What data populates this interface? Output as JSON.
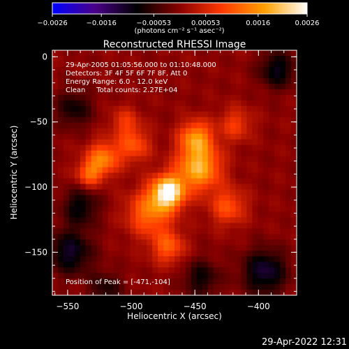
{
  "chart_data": {
    "type": "heatmap",
    "title": "Reconstructed RHESSI Image",
    "xlabel": "Heliocentric X (arcsec)",
    "ylabel": "Heliocentric Y (arcsec)",
    "xlim": [
      -562,
      -370
    ],
    "ylim": [
      -183,
      5
    ],
    "x_ticks": [
      -550,
      -500,
      -450,
      -400
    ],
    "x_tick_labels": [
      "−550",
      "−500",
      "−450",
      "−400"
    ],
    "y_ticks": [
      0,
      -50,
      -100,
      -150
    ],
    "y_tick_labels": [
      "0",
      "−50",
      "−100",
      "−150"
    ],
    "grid": false,
    "colorbar": {
      "range": [
        -0.0026,
        0.0026
      ],
      "ticks": [
        -0.0026,
        -0.0016,
        -0.00053,
        0.00053,
        0.0016,
        0.0026
      ],
      "tick_labels": [
        "−0.0026",
        "−0.0016",
        "−0.00053",
        "0.00053",
        "0.0016",
        "0.0026"
      ],
      "units_label": "(photons cm⁻² s⁻¹ asec⁻²)",
      "colors": [
        "#0000ff",
        "#4a0088",
        "#000000",
        "#8a0000",
        "#ff3a00",
        "#ffa000",
        "#ffffff"
      ]
    },
    "annotations": [
      "29-Apr-2005 01:05:56.000 to 01:10:48.000",
      "Detectors: 3F 4F 5F 6F 7F 8F, Att 0",
      "Energy Range: 6.0 - 12.0 keV",
      "Clean     Total counts: 2.27E+04"
    ],
    "peak_label": "Position of Peak = [-471,-104]",
    "peak": {
      "x": -471,
      "y": -104,
      "value": 0.0026
    },
    "sources": [
      {
        "x": -471,
        "y": -104,
        "amplitude": 0.0026,
        "sigma": 9
      },
      {
        "x": -447,
        "y": -85,
        "amplitude": 0.0019,
        "sigma": 12
      },
      {
        "x": -449,
        "y": -62,
        "amplitude": 0.0015,
        "sigma": 9
      },
      {
        "x": -522,
        "y": -78,
        "amplitude": 0.0014,
        "sigma": 9
      },
      {
        "x": -533,
        "y": -90,
        "amplitude": 0.0011,
        "sigma": 7
      },
      {
        "x": -486,
        "y": -120,
        "amplitude": 0.0013,
        "sigma": 12
      },
      {
        "x": -471,
        "y": -146,
        "amplitude": 0.0011,
        "sigma": 9
      },
      {
        "x": -424,
        "y": -115,
        "amplitude": 0.001,
        "sigma": 10
      },
      {
        "x": -498,
        "y": -68,
        "amplitude": 0.001,
        "sigma": 9
      },
      {
        "x": -418,
        "y": -52,
        "amplitude": 0.0008,
        "sigma": 9
      },
      {
        "x": -505,
        "y": -50,
        "amplitude": 0.0007,
        "sigma": 8
      },
      {
        "x": -540,
        "y": -115,
        "amplitude": -0.0009,
        "sigma": 10
      },
      {
        "x": -548,
        "y": -150,
        "amplitude": -0.0011,
        "sigma": 12
      },
      {
        "x": -395,
        "y": -165,
        "amplitude": -0.0012,
        "sigma": 12
      },
      {
        "x": -385,
        "y": -10,
        "amplitude": -0.001,
        "sigma": 10
      },
      {
        "x": -545,
        "y": -40,
        "amplitude": -0.0008,
        "sigma": 10
      },
      {
        "x": -445,
        "y": -170,
        "amplitude": -0.0008,
        "sigma": 10
      },
      {
        "x": -520,
        "y": -178,
        "amplitude": -0.0007,
        "sigma": 9
      }
    ]
  },
  "footer_timestamp": "29-Apr-2022 12:31"
}
